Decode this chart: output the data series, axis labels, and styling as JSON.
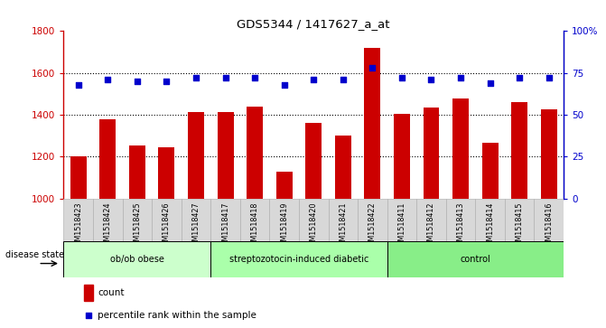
{
  "title": "GDS5344 / 1417627_a_at",
  "samples": [
    "GSM1518423",
    "GSM1518424",
    "GSM1518425",
    "GSM1518426",
    "GSM1518427",
    "GSM1518417",
    "GSM1518418",
    "GSM1518419",
    "GSM1518420",
    "GSM1518421",
    "GSM1518422",
    "GSM1518411",
    "GSM1518412",
    "GSM1518413",
    "GSM1518414",
    "GSM1518415",
    "GSM1518416"
  ],
  "counts": [
    1200,
    1380,
    1255,
    1245,
    1415,
    1415,
    1440,
    1130,
    1360,
    1300,
    1720,
    1405,
    1435,
    1480,
    1265,
    1460,
    1425
  ],
  "percentile_ranks": [
    68,
    71,
    70,
    70,
    72,
    72,
    72,
    68,
    71,
    71,
    78,
    72,
    71,
    72,
    69,
    72,
    72
  ],
  "groups": [
    {
      "label": "ob/ob obese",
      "start": 0,
      "end": 5,
      "color": "#ccffcc"
    },
    {
      "label": "streptozotocin-induced diabetic",
      "start": 5,
      "end": 11,
      "color": "#aaffaa"
    },
    {
      "label": "control",
      "start": 11,
      "end": 17,
      "color": "#88ee88"
    }
  ],
  "bar_color": "#cc0000",
  "dot_color": "#0000cc",
  "ylim_left": [
    1000,
    1800
  ],
  "ylim_right": [
    0,
    100
  ],
  "yticks_left": [
    1000,
    1200,
    1400,
    1600,
    1800
  ],
  "yticks_right": [
    0,
    25,
    50,
    75,
    100
  ],
  "grid_color": "black",
  "plot_bg": "white",
  "tick_bg": "#d8d8d8",
  "disease_state_label": "disease state",
  "legend_items": [
    "count",
    "percentile rank within the sample"
  ]
}
